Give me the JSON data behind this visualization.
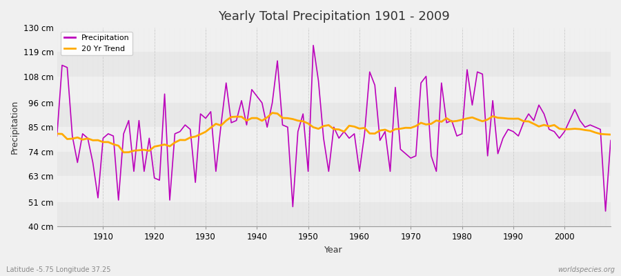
{
  "title": "Yearly Total Precipitation 1901 - 2009",
  "xlabel": "Year",
  "ylabel": "Precipitation",
  "bg_color": "#f0f0f0",
  "plot_bg_color": "#f0f0f0",
  "line_color": "#bb00bb",
  "trend_color": "#ffaa00",
  "ylim": [
    40,
    130
  ],
  "yticks": [
    40,
    51,
    63,
    74,
    85,
    96,
    108,
    119,
    130
  ],
  "ytick_labels": [
    "40 cm",
    "51 cm",
    "63 cm",
    "74 cm",
    "85 cm",
    "96 cm",
    "108 cm",
    "119 cm",
    "130 cm"
  ],
  "start_year": 1901,
  "end_year": 2009,
  "footnote_left": "Latitude -5.75 Longitude 37.25",
  "footnote_right": "worldspecies.org",
  "legend_labels": [
    "Precipitation",
    "20 Yr Trend"
  ],
  "precipitation": [
    81,
    113,
    112,
    81,
    69,
    82,
    80,
    69,
    53,
    80,
    82,
    81,
    52,
    82,
    88,
    65,
    88,
    65,
    80,
    62,
    61,
    100,
    52,
    82,
    83,
    86,
    84,
    60,
    91,
    89,
    92,
    65,
    86,
    105,
    87,
    88,
    97,
    86,
    102,
    99,
    96,
    85,
    96,
    115,
    86,
    85,
    49,
    83,
    91,
    65,
    122,
    106,
    80,
    65,
    85,
    80,
    83,
    80,
    82,
    65,
    82,
    110,
    104,
    79,
    83,
    65,
    103,
    75,
    73,
    71,
    72,
    105,
    108,
    72,
    65,
    105,
    87,
    88,
    81,
    82,
    111,
    95,
    110,
    109,
    72,
    97,
    73,
    80,
    84,
    83,
    81,
    87,
    91,
    88,
    95,
    91,
    84,
    83,
    80,
    83,
    88,
    93,
    88,
    85,
    86,
    85,
    84,
    47,
    79
  ]
}
